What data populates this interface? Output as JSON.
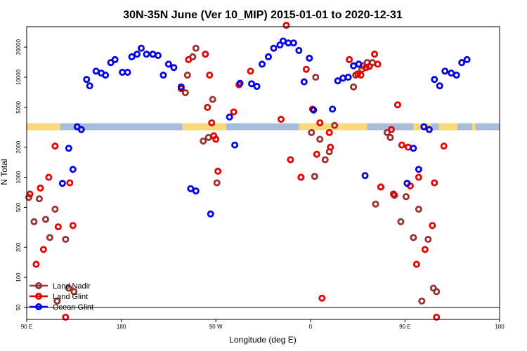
{
  "chart_data": {
    "type": "scatter",
    "title": "30N-35N June (Ver 10_MIP)   2015-01-01 to 2020-12-31",
    "xlabel": "Longitude (deg E)",
    "ylabel": "N Total",
    "yscale": "log",
    "xlim": [
      90,
      540
    ],
    "ylim": [
      38,
      32000
    ],
    "x_ticks": [
      {
        "value": 90,
        "label": "90 E"
      },
      {
        "value": 180,
        "label": "180"
      },
      {
        "value": 270,
        "label": "90 W"
      },
      {
        "value": 360,
        "label": "0"
      },
      {
        "value": 450,
        "label": "90 E"
      },
      {
        "value": 540,
        "label": "180"
      }
    ],
    "y_ticks": [
      {
        "value": 50,
        "label": "50"
      },
      {
        "value": 100,
        "label": "100"
      },
      {
        "value": 200,
        "label": "200"
      },
      {
        "value": 500,
        "label": "500"
      },
      {
        "value": 1000,
        "label": "1000"
      },
      {
        "value": 2000,
        "label": "2000"
      },
      {
        "value": 5000,
        "label": "5000"
      },
      {
        "value": 10000,
        "label": "10000"
      },
      {
        "value": 20000,
        "label": "20000"
      }
    ],
    "separator_y": 50,
    "land_band": {
      "y": 3200,
      "ocean_color": "#a6bcd9",
      "land_color": "#f9d97a",
      "land_segments": [
        [
          90,
          122
        ],
        [
          238,
          280
        ],
        [
          349,
          414
        ],
        [
          458,
          475
        ],
        [
          482,
          500
        ],
        [
          514,
          517
        ]
      ]
    },
    "legend_position": "bottom-left",
    "series": [
      {
        "name": "Land Nadir",
        "color": "#9b3030",
        "points": [
          [
            92,
            630
          ],
          [
            97,
            360
          ],
          [
            102,
            610
          ],
          [
            108,
            380
          ],
          [
            112,
            250
          ],
          [
            117,
            480
          ],
          [
            119,
            58
          ],
          [
            127,
            240
          ],
          [
            130,
            78
          ],
          [
            135,
            72
          ],
          [
            241,
            7000
          ],
          [
            243,
            10500
          ],
          [
            248,
            16000
          ],
          [
            251,
            19500
          ],
          [
            258,
            2300
          ],
          [
            263,
            2500
          ],
          [
            267,
            6000
          ],
          [
            271,
            880
          ],
          [
            361,
            2800
          ],
          [
            364,
            1020
          ],
          [
            365,
            10000
          ],
          [
            369,
            2400
          ],
          [
            374,
            1500
          ],
          [
            378,
            1800
          ],
          [
            383,
            3300
          ],
          [
            401,
            8000
          ],
          [
            403,
            10500
          ],
          [
            409,
            12000
          ],
          [
            410,
            13000
          ],
          [
            414,
            14000
          ],
          [
            419,
            14000
          ],
          [
            422,
            540
          ],
          [
            427,
            800
          ],
          [
            433,
            2800
          ],
          [
            436,
            2500
          ],
          [
            440,
            660
          ],
          [
            446,
            360
          ],
          [
            451,
            640
          ],
          [
            458,
            250
          ],
          [
            463,
            480
          ],
          [
            466,
            58
          ],
          [
            472,
            240
          ],
          [
            477,
            78
          ],
          [
            480,
            72
          ]
        ]
      },
      {
        "name": "Land Glint",
        "color": "#e60000",
        "points": [
          [
            93,
            680
          ],
          [
            99,
            135
          ],
          [
            103,
            780
          ],
          [
            106,
            190
          ],
          [
            111,
            1000
          ],
          [
            117,
            2050
          ],
          [
            120,
            320
          ],
          [
            127,
            40
          ],
          [
            131,
            880
          ],
          [
            134,
            330
          ],
          [
            237,
            7700
          ],
          [
            244,
            15000
          ],
          [
            260,
            17000
          ],
          [
            262,
            5000
          ],
          [
            264,
            10500
          ],
          [
            266,
            3500
          ],
          [
            268,
            2600
          ],
          [
            270,
            2400
          ],
          [
            272,
            1150
          ],
          [
            287,
            4500
          ],
          [
            292,
            8400
          ],
          [
            303,
            11500
          ],
          [
            332,
            3800
          ],
          [
            337,
            33000
          ],
          [
            341,
            1500
          ],
          [
            351,
            1000
          ],
          [
            356,
            12000
          ],
          [
            362,
            4800
          ],
          [
            366,
            1700
          ],
          [
            369,
            3500
          ],
          [
            371,
            62
          ],
          [
            378,
            2800
          ],
          [
            379,
            2000
          ],
          [
            397,
            15000
          ],
          [
            405,
            10800
          ],
          [
            408,
            10500
          ],
          [
            413,
            12500
          ],
          [
            416,
            12800
          ],
          [
            421,
            17000
          ],
          [
            424,
            13500
          ],
          [
            427,
            800
          ],
          [
            437,
            3000
          ],
          [
            439,
            680
          ],
          [
            443,
            5300
          ],
          [
            447,
            2100
          ],
          [
            453,
            2000
          ],
          [
            455,
            820
          ],
          [
            461,
            135
          ],
          [
            463,
            1000
          ],
          [
            469,
            190
          ],
          [
            476,
            330
          ],
          [
            478,
            880
          ],
          [
            480,
            40
          ],
          [
            487,
            2050
          ]
        ]
      },
      {
        "name": "Ocean Glint",
        "color": "#0000e6",
        "points": [
          [
            124,
            870
          ],
          [
            130,
            1950
          ],
          [
            134,
            1200
          ],
          [
            138,
            3200
          ],
          [
            142,
            3000
          ],
          [
            147,
            9500
          ],
          [
            150,
            8200
          ],
          [
            156,
            11500
          ],
          [
            161,
            11000
          ],
          [
            165,
            10500
          ],
          [
            170,
            14000
          ],
          [
            174,
            15000
          ],
          [
            181,
            11200
          ],
          [
            186,
            11200
          ],
          [
            190,
            16000
          ],
          [
            195,
            17000
          ],
          [
            199,
            19500
          ],
          [
            204,
            17000
          ],
          [
            210,
            17000
          ],
          [
            215,
            16500
          ],
          [
            220,
            10500
          ],
          [
            225,
            13500
          ],
          [
            230,
            12500
          ],
          [
            237,
            8000
          ],
          [
            246,
            770
          ],
          [
            251,
            730
          ],
          [
            265,
            430
          ],
          [
            283,
            4000
          ],
          [
            288,
            2100
          ],
          [
            293,
            8700
          ],
          [
            304,
            8600
          ],
          [
            309,
            8100
          ],
          [
            314,
            13500
          ],
          [
            320,
            16000
          ],
          [
            325,
            19500
          ],
          [
            331,
            21000
          ],
          [
            334,
            23000
          ],
          [
            339,
            22000
          ],
          [
            344,
            22000
          ],
          [
            349,
            18500
          ],
          [
            354,
            9000
          ],
          [
            359,
            15500
          ],
          [
            363,
            4700
          ],
          [
            381,
            4800
          ],
          [
            386,
            9200
          ],
          [
            391,
            9800
          ],
          [
            396,
            10000
          ],
          [
            401,
            13000
          ],
          [
            406,
            13500
          ],
          [
            412,
            1040
          ],
          [
            452,
            870
          ],
          [
            458,
            1950
          ],
          [
            463,
            1200
          ],
          [
            468,
            3200
          ],
          [
            473,
            3000
          ],
          [
            478,
            9500
          ],
          [
            483,
            8200
          ],
          [
            488,
            11500
          ],
          [
            494,
            11000
          ],
          [
            499,
            10500
          ],
          [
            504,
            14000
          ],
          [
            509,
            15000
          ]
        ]
      }
    ]
  }
}
